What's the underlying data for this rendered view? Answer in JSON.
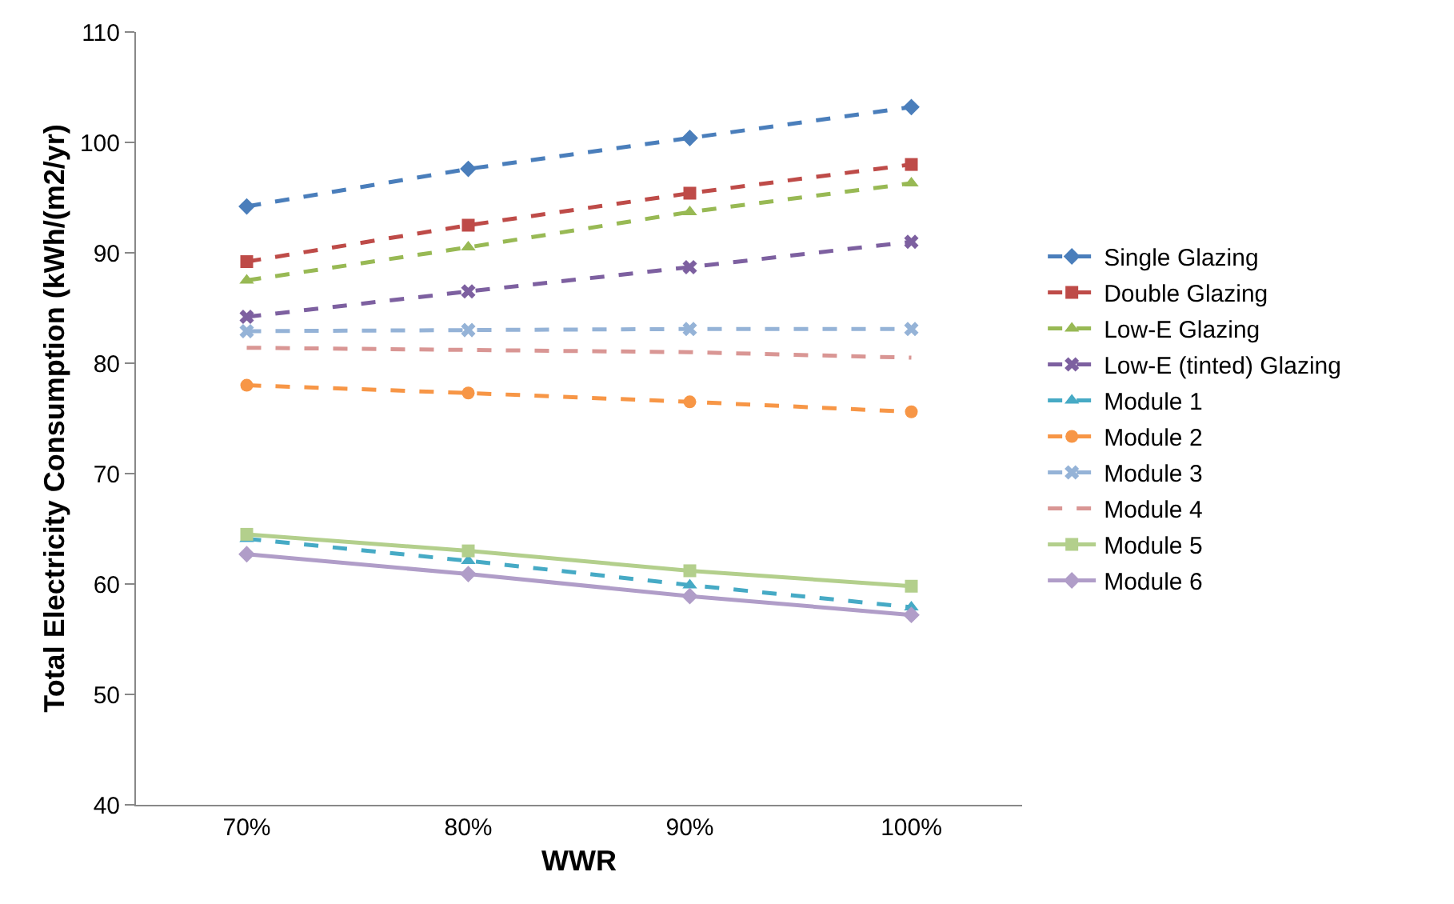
{
  "chart_data": {
    "type": "line",
    "xlabel": "WWR",
    "ylabel": "Total Electricity Consumption (kWh/(m2/yr)",
    "categories": [
      "70%",
      "80%",
      "90%",
      "100%"
    ],
    "ylim": [
      40,
      110
    ],
    "yticks": [
      40,
      50,
      60,
      70,
      80,
      90,
      100,
      110
    ],
    "legend": "right",
    "series": [
      {
        "name": "Single Glazing",
        "color": "#4a7ebb",
        "marker": "diamond",
        "line_style": "dashed",
        "values": [
          94.2,
          97.6,
          100.4,
          103.2
        ]
      },
      {
        "name": "Double Glazing",
        "color": "#be4b48",
        "marker": "square",
        "line_style": "dashed",
        "values": [
          89.2,
          92.5,
          95.4,
          98.0
        ]
      },
      {
        "name": "Low-E Glazing",
        "color": "#98b954",
        "marker": "triangle",
        "line_style": "dashed",
        "values": [
          87.5,
          90.5,
          93.7,
          96.3
        ]
      },
      {
        "name": "Low-E (tinted) Glazing",
        "color": "#7d60a0",
        "marker": "cross",
        "line_style": "dashed",
        "values": [
          84.2,
          86.5,
          88.7,
          91.0
        ]
      },
      {
        "name": "Module 1",
        "color": "#46aac5",
        "marker": "triangle",
        "line_style": "dashed",
        "values": [
          64.1,
          62.1,
          59.9,
          57.9
        ]
      },
      {
        "name": "Module 2",
        "color": "#f79646",
        "marker": "circle",
        "line_style": "dashed",
        "values": [
          78.0,
          77.3,
          76.5,
          75.6
        ]
      },
      {
        "name": "Module 3",
        "color": "#95b3d7",
        "marker": "cross",
        "line_style": "dashed",
        "values": [
          82.9,
          83.0,
          83.1,
          83.1
        ]
      },
      {
        "name": "Module 4",
        "color": "#d99694",
        "marker": "none",
        "line_style": "dashed",
        "values": [
          81.4,
          81.2,
          81.0,
          80.5
        ]
      },
      {
        "name": "Module 5",
        "color": "#b3cf8c",
        "marker": "square",
        "line_style": "solid",
        "values": [
          64.5,
          63.0,
          61.2,
          59.8
        ]
      },
      {
        "name": "Module 6",
        "color": "#b09dc8",
        "marker": "diamond",
        "line_style": "solid",
        "values": [
          62.7,
          60.9,
          58.9,
          57.2
        ]
      }
    ]
  }
}
